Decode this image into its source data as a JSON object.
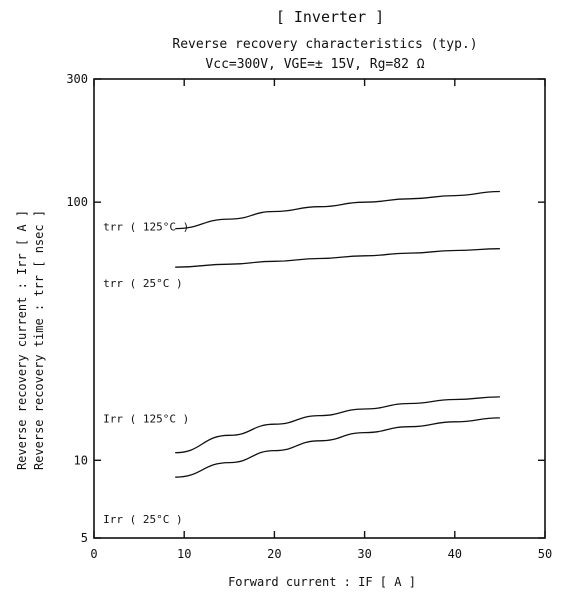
{
  "chart_data": {
    "type": "line",
    "title": "[ Inverter ]",
    "subtitle": "Reverse recovery characteristics  (typ.)",
    "conditions": "Vcc=300V,  VGE=± 15V,  Rg=82 Ω",
    "xlabel": "Forward current  :  IF   [ A ]",
    "ylabel_line1": "Reverse recovery current  :  Irr  [ A ]",
    "ylabel_line2": "Reverse recovery time  :  trr  [ nsec ]",
    "xlim": [
      0,
      50
    ],
    "ylim": [
      5,
      300
    ],
    "y_scale": "log",
    "grid": false,
    "x_ticks": [
      0,
      10,
      20,
      30,
      40,
      50
    ],
    "x_tick_labels": [
      "0",
      "10",
      "20",
      "30",
      "40",
      "50"
    ],
    "y_ticks": [
      5,
      10,
      100,
      300
    ],
    "y_tick_labels": [
      "5",
      "10",
      "100",
      "300"
    ],
    "series": [
      {
        "name": "trr ( 125°C )",
        "x": [
          9,
          15,
          20,
          25,
          30,
          35,
          40,
          45
        ],
        "y": [
          79,
          86,
          92,
          96,
          100,
          103,
          106,
          110
        ]
      },
      {
        "name": "trr ( 25°C )",
        "x": [
          9,
          15,
          20,
          25,
          30,
          35,
          40,
          45
        ],
        "y": [
          56,
          57.5,
          59,
          60.5,
          62,
          63.5,
          65,
          66
        ]
      },
      {
        "name": "Irr ( 125°C )",
        "x": [
          9,
          15,
          20,
          25,
          30,
          35,
          40,
          45
        ],
        "y": [
          10.7,
          12.5,
          13.8,
          14.9,
          15.8,
          16.6,
          17.2,
          17.6
        ]
      },
      {
        "name": "Irr ( 25°C )",
        "x": [
          9,
          15,
          20,
          25,
          30,
          35,
          40,
          45
        ],
        "y": [
          8.6,
          9.8,
          10.9,
          11.9,
          12.8,
          13.5,
          14.1,
          14.6
        ]
      }
    ]
  }
}
